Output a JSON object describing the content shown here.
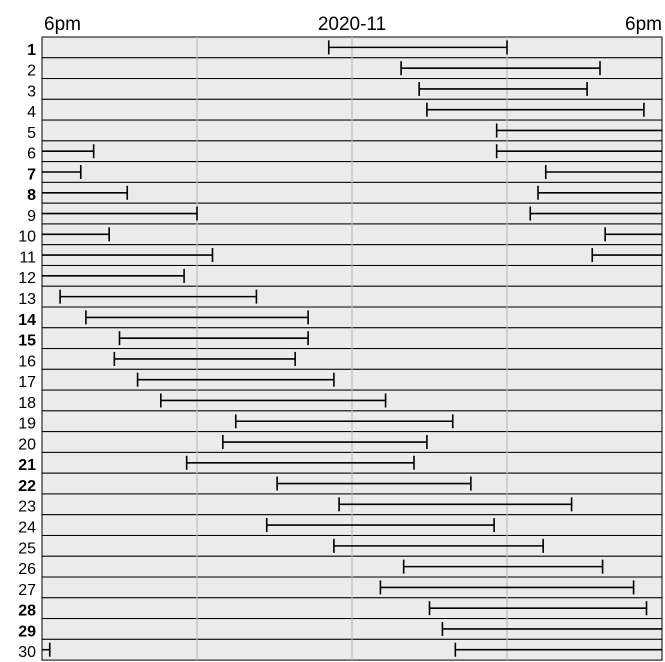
{
  "chart_data": {
    "type": "timeline",
    "month_label": "2020-11",
    "x_tick_labels": [
      "6pm",
      "2020-11",
      "6pm"
    ],
    "x_unit": "hour_of_day",
    "x_range": [
      18,
      42
    ],
    "grid_hours": [
      18,
      24,
      30,
      36,
      42
    ],
    "weekend_days": [
      1,
      7,
      8,
      14,
      15,
      21,
      22,
      28,
      29
    ],
    "days": [
      {
        "label": "1",
        "intervals": [
          [
            29.1,
            36.0
          ]
        ]
      },
      {
        "label": "2",
        "intervals": [
          [
            31.9,
            39.6
          ]
        ]
      },
      {
        "label": "3",
        "intervals": [
          [
            32.6,
            39.1
          ]
        ]
      },
      {
        "label": "4",
        "intervals": [
          [
            32.9,
            41.3
          ]
        ]
      },
      {
        "label": "5",
        "intervals": [
          [
            35.6,
            42.0
          ]
        ]
      },
      {
        "label": "6",
        "intervals": [
          [
            18.0,
            20.0
          ],
          [
            35.6,
            42.0
          ]
        ]
      },
      {
        "label": "7",
        "intervals": [
          [
            18.0,
            19.5
          ],
          [
            37.5,
            42.0
          ]
        ]
      },
      {
        "label": "8",
        "intervals": [
          [
            18.0,
            21.3
          ],
          [
            37.2,
            42.0
          ]
        ]
      },
      {
        "label": "9",
        "intervals": [
          [
            18.0,
            24.0
          ],
          [
            36.9,
            42.0
          ]
        ]
      },
      {
        "label": "10",
        "intervals": [
          [
            18.0,
            20.6
          ],
          [
            39.8,
            42.0
          ]
        ]
      },
      {
        "label": "11",
        "intervals": [
          [
            18.0,
            24.6
          ],
          [
            39.3,
            42.0
          ]
        ]
      },
      {
        "label": "12",
        "intervals": [
          [
            18.0,
            23.5
          ]
        ]
      },
      {
        "label": "13",
        "intervals": [
          [
            18.7,
            26.3
          ]
        ]
      },
      {
        "label": "14",
        "intervals": [
          [
            19.7,
            28.3
          ]
        ]
      },
      {
        "label": "15",
        "intervals": [
          [
            21.0,
            28.3
          ]
        ]
      },
      {
        "label": "16",
        "intervals": [
          [
            20.8,
            27.8
          ]
        ]
      },
      {
        "label": "17",
        "intervals": [
          [
            21.7,
            29.3
          ]
        ]
      },
      {
        "label": "18",
        "intervals": [
          [
            22.6,
            31.3
          ]
        ]
      },
      {
        "label": "19",
        "intervals": [
          [
            25.5,
            33.9
          ]
        ]
      },
      {
        "label": "20",
        "intervals": [
          [
            25.0,
            32.9
          ]
        ]
      },
      {
        "label": "21",
        "intervals": [
          [
            23.6,
            32.4
          ]
        ]
      },
      {
        "label": "22",
        "intervals": [
          [
            27.1,
            34.6
          ]
        ]
      },
      {
        "label": "23",
        "intervals": [
          [
            29.5,
            38.5
          ]
        ]
      },
      {
        "label": "24",
        "intervals": [
          [
            26.7,
            35.5
          ]
        ]
      },
      {
        "label": "25",
        "intervals": [
          [
            29.3,
            37.4
          ]
        ]
      },
      {
        "label": "26",
        "intervals": [
          [
            32.0,
            39.7
          ]
        ]
      },
      {
        "label": "27",
        "intervals": [
          [
            31.1,
            40.9
          ]
        ]
      },
      {
        "label": "28",
        "intervals": [
          [
            33.0,
            41.4
          ]
        ]
      },
      {
        "label": "29",
        "intervals": [
          [
            33.5,
            42.0
          ]
        ]
      },
      {
        "label": "30",
        "intervals": [
          [
            18.0,
            18.3
          ],
          [
            34.0,
            42.0
          ]
        ]
      }
    ]
  }
}
